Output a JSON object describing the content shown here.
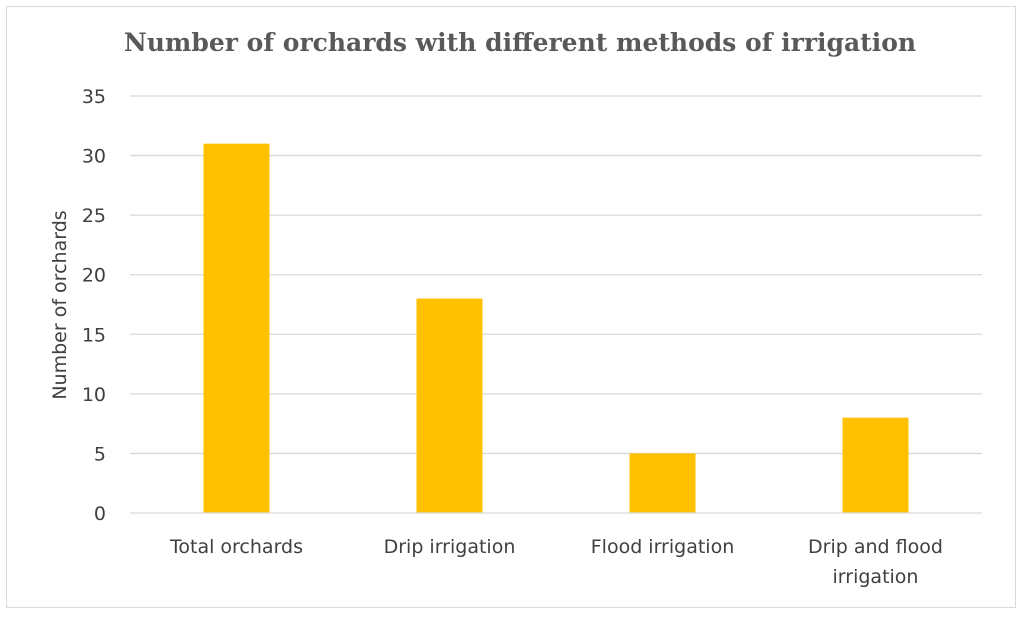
{
  "chart_data": {
    "type": "bar",
    "title": "Number of orchards with different methods of irrigation",
    "xlabel": "",
    "ylabel": "Number of orchards",
    "categories": [
      [
        "Total orchards"
      ],
      [
        "Drip irrigation"
      ],
      [
        "Flood irrigation"
      ],
      [
        "Drip and flood",
        "irrigation"
      ]
    ],
    "values": [
      31,
      18,
      5,
      8
    ],
    "ylim": [
      0,
      35
    ],
    "yticks": [
      "0",
      "5",
      "10",
      "15",
      "20",
      "25",
      "30",
      "35"
    ],
    "grid": true,
    "legend": "none",
    "colors": {
      "bar": "#FFC000",
      "grid": "#D9D9D9",
      "axis": "#D9D9D9"
    }
  }
}
